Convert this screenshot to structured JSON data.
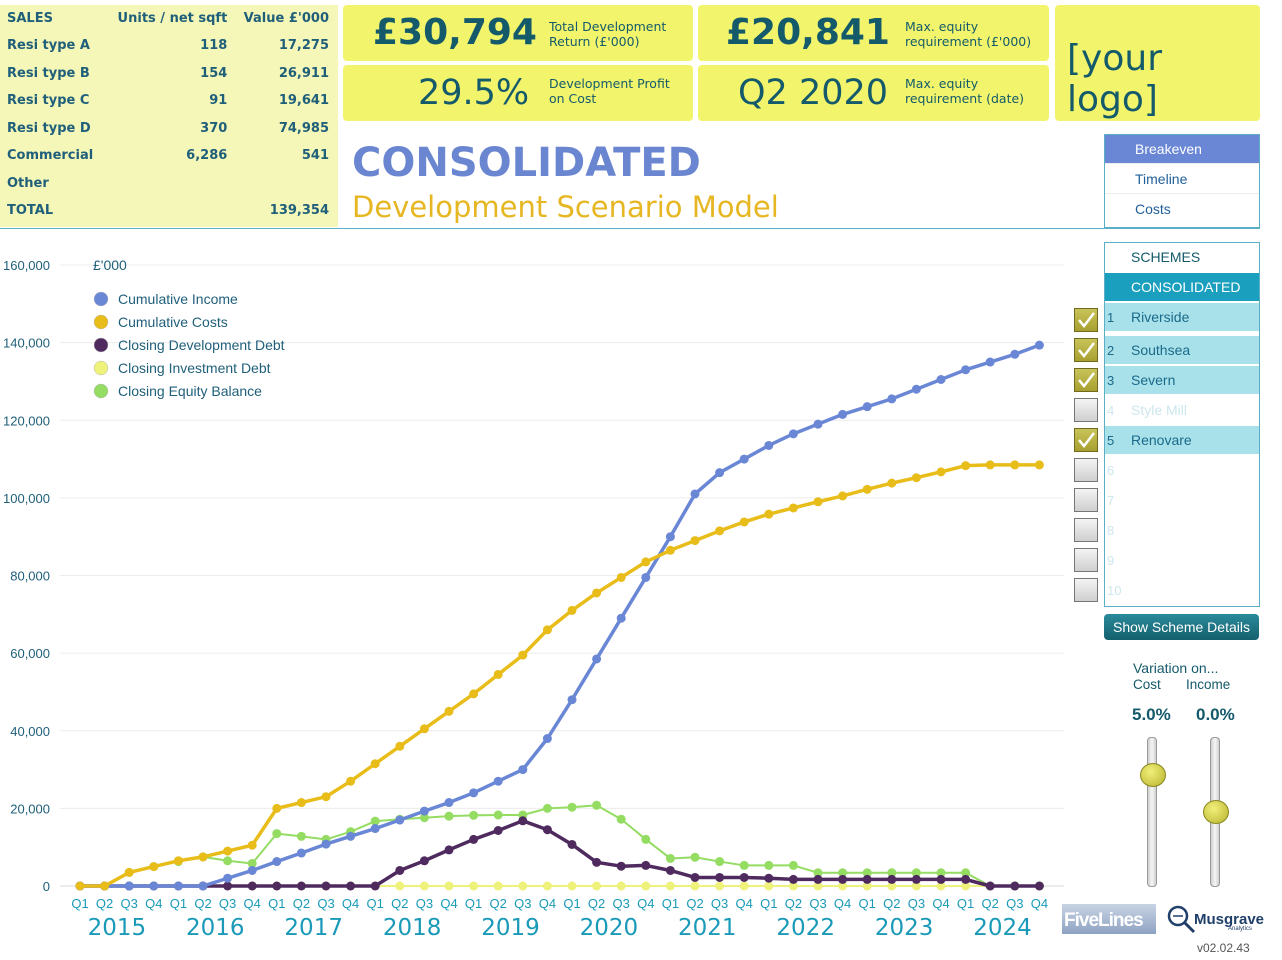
{
  "sales": {
    "header": [
      "SALES",
      "Units / net sqft",
      "Value £'000"
    ],
    "rows": [
      {
        "label": "Resi type A",
        "units": "118",
        "value": "17,275"
      },
      {
        "label": "Resi type B",
        "units": "154",
        "value": "26,911"
      },
      {
        "label": "Resi type C",
        "units": "91",
        "value": "19,641"
      },
      {
        "label": "Resi type D",
        "units": "370",
        "value": "74,985"
      },
      {
        "label": "Commercial",
        "units": "6,286",
        "value": "541"
      },
      {
        "label": "Other",
        "units": "",
        "value": ""
      },
      {
        "label": "TOTAL",
        "units": "",
        "value": "139,354"
      }
    ]
  },
  "kpis": {
    "return_value": "£30,794",
    "return_label": "Total Development Return (£'000)",
    "profit_value": "29.5%",
    "profit_label": "Development Profit on Cost",
    "equity_value": "£20,841",
    "equity_label": "Max. equity requirement (£'000)",
    "equity_date_value": "Q2 2020",
    "equity_date_label": "Max. equity requirement (date)"
  },
  "logo": "[your logo]",
  "title": "CONSOLIDATED",
  "subtitle": "Development Scenario Model",
  "nav": {
    "items": [
      "Breakeven",
      "Timeline",
      "Costs"
    ],
    "active": "Breakeven"
  },
  "schemes": {
    "header": "SCHEMES",
    "selected": "CONSOLIDATED",
    "items": [
      {
        "num": "1",
        "name": "Riverside",
        "checked": true
      },
      {
        "num": "2",
        "name": "Southsea",
        "checked": true
      },
      {
        "num": "3",
        "name": "Severn",
        "checked": true
      },
      {
        "num": "4",
        "name": "Style Mill",
        "checked": false
      },
      {
        "num": "5",
        "name": "Renovare",
        "checked": true
      },
      {
        "num": "6",
        "name": "",
        "checked": false
      },
      {
        "num": "7",
        "name": "",
        "checked": false
      },
      {
        "num": "8",
        "name": "",
        "checked": false
      },
      {
        "num": "9",
        "name": "",
        "checked": false
      },
      {
        "num": "10",
        "name": "",
        "checked": false
      }
    ],
    "button": "Show Scheme Details"
  },
  "variation": {
    "title": "Variation on...",
    "cost_label": "Cost",
    "income_label": "Income",
    "cost_value": "5.0%",
    "income_value": "0.0%",
    "cost_level": 0.75,
    "income_level": 0.5
  },
  "footer": {
    "brand1": "FiveLines",
    "brand2": "Musgrave",
    "brand2_sub": "Analytics",
    "version": "v02.02.43"
  },
  "colors": {
    "income": "#6a87d6",
    "costs": "#e8bd1a",
    "dev_debt": "#4e2a5e",
    "inv_debt": "#eef27a",
    "equity": "#94dc62"
  },
  "chart_data": {
    "type": "line",
    "ylabel": "£'000",
    "ylim": [
      0,
      160000
    ],
    "yticks": [
      "160,000",
      "140,000",
      "120,000",
      "100,000",
      "80,000",
      "60,000",
      "40,000",
      "20,000",
      "0"
    ],
    "quarters": [
      "Q1",
      "Q2",
      "Q3",
      "Q4",
      "Q1",
      "Q2",
      "Q3",
      "Q4",
      "Q1",
      "Q2",
      "Q3",
      "Q4",
      "Q1",
      "Q2",
      "Q3",
      "Q4",
      "Q1",
      "Q2",
      "Q3",
      "Q4",
      "Q1",
      "Q2",
      "Q3",
      "Q4",
      "Q1",
      "Q2",
      "Q3",
      "Q4",
      "Q1",
      "Q2",
      "Q3",
      "Q4",
      "Q1",
      "Q2",
      "Q3",
      "Q4",
      "Q1",
      "Q2",
      "Q3",
      "Q4"
    ],
    "years": [
      "2015",
      "2016",
      "2017",
      "2018",
      "2019",
      "2020",
      "2021",
      "2022",
      "2023",
      "2024"
    ],
    "legend_position": "top-left",
    "series": [
      {
        "name": "Cumulative Income",
        "color": "#6a87d6",
        "values": [
          0,
          0,
          0,
          0,
          0,
          0,
          2000,
          4000,
          6300,
          8500,
          10800,
          12800,
          14800,
          17000,
          19300,
          21500,
          24000,
          27000,
          30000,
          38000,
          48000,
          58500,
          69000,
          79500,
          90000,
          101000,
          106500,
          110000,
          113500,
          116500,
          119000,
          121500,
          123500,
          125500,
          128000,
          130500,
          133000,
          135000,
          137000,
          139354
        ]
      },
      {
        "name": "Cumulative Costs",
        "color": "#e8bd1a",
        "values": [
          0,
          0,
          3500,
          5000,
          6500,
          7500,
          9000,
          10500,
          20000,
          21500,
          23000,
          27000,
          31500,
          36000,
          40500,
          45000,
          49500,
          54500,
          59500,
          66000,
          71000,
          75500,
          79500,
          83500,
          86500,
          89000,
          91500,
          93800,
          95800,
          97400,
          99000,
          100500,
          102200,
          103800,
          105200,
          106700,
          108300,
          108500,
          108500,
          108500
        ]
      },
      {
        "name": "Closing Development Debt",
        "color": "#4e2a5e",
        "values": [
          0,
          0,
          0,
          0,
          0,
          0,
          0,
          0,
          0,
          0,
          0,
          0,
          0,
          4000,
          6500,
          9300,
          12000,
          14300,
          16800,
          14500,
          10700,
          6100,
          5100,
          5300,
          4000,
          2200,
          2200,
          2200,
          2000,
          1700,
          1700,
          1700,
          1700,
          1700,
          1700,
          1700,
          1700,
          0,
          0,
          0
        ]
      },
      {
        "name": "Closing Investment Debt",
        "color": "#eef27a",
        "values": [
          0,
          0,
          0,
          0,
          0,
          0,
          0,
          0,
          0,
          0,
          0,
          0,
          0,
          0,
          0,
          0,
          0,
          0,
          0,
          0,
          0,
          0,
          0,
          0,
          0,
          0,
          0,
          0,
          0,
          0,
          0,
          0,
          0,
          0,
          0,
          0,
          0,
          0,
          0,
          0
        ]
      },
      {
        "name": "Closing Equity Balance",
        "color": "#94dc62",
        "values": [
          0,
          0,
          3500,
          5000,
          6300,
          7500,
          6500,
          5800,
          13500,
          12800,
          12000,
          14000,
          16700,
          17200,
          17600,
          18000,
          18200,
          18300,
          18300,
          20000,
          20300,
          20800,
          17200,
          12000,
          7100,
          7400,
          6300,
          5300,
          5300,
          5300,
          3400,
          3400,
          3400,
          3400,
          3400,
          3400,
          3400,
          0,
          0,
          0
        ]
      }
    ]
  }
}
